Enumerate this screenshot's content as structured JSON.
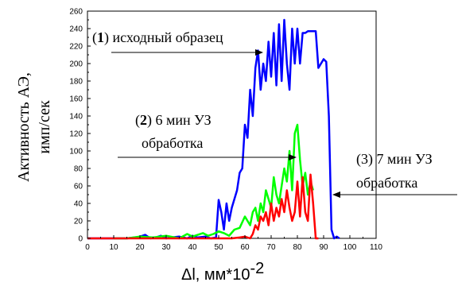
{
  "chart_data": {
    "type": "line",
    "ylabel_line1": "Активность АЭ,",
    "ylabel_line2": "имп/сек",
    "xlabel_main": "Δl, мм*10",
    "xlabel_exp": "-2",
    "xlim": [
      0,
      110
    ],
    "ylim": [
      0,
      260
    ],
    "xticks": [
      0,
      10,
      20,
      30,
      40,
      50,
      60,
      70,
      80,
      90,
      100,
      110
    ],
    "yticks": [
      0,
      20,
      40,
      60,
      80,
      100,
      120,
      140,
      160,
      180,
      200,
      220,
      240,
      260
    ],
    "annotations": [
      {
        "num": "1",
        "text": ") исходный образец"
      },
      {
        "num": "2",
        "text": ") 6 мин УЗ"
      },
      {
        "text": "обработка"
      },
      {
        "text": "(3) 7 мин УЗ"
      },
      {
        "text": "обработка"
      }
    ],
    "series": [
      {
        "color": "#0000ff",
        "x": [
          0,
          5,
          10,
          15,
          18,
          20,
          22,
          24,
          26,
          28,
          30,
          32,
          35,
          38,
          40,
          42,
          45,
          47,
          49,
          50,
          51,
          52,
          53,
          54,
          55,
          56,
          57,
          58,
          59,
          60,
          61,
          62,
          63,
          64,
          65,
          66,
          67,
          68,
          69,
          70,
          71,
          72,
          73,
          74,
          75,
          76,
          77,
          78,
          79,
          80,
          81,
          82,
          83,
          84,
          85,
          86,
          87,
          88,
          89,
          90,
          91,
          92,
          93,
          94,
          95,
          96
        ],
        "values": [
          0,
          0,
          0,
          0,
          1,
          2,
          4,
          0,
          1,
          3,
          0,
          1,
          2,
          0,
          3,
          1,
          2,
          0,
          1,
          44,
          30,
          10,
          40,
          20,
          35,
          45,
          55,
          75,
          80,
          130,
          115,
          170,
          140,
          195,
          215,
          170,
          200,
          180,
          225,
          185,
          235,
          175,
          245,
          180,
          250,
          200,
          170,
          240,
          200,
          240,
          200,
          235,
          235,
          237,
          237,
          237,
          237,
          195,
          200,
          205,
          202,
          140,
          10,
          0,
          2,
          0
        ]
      },
      {
        "color": "#00ff00",
        "x": [
          10,
          15,
          20,
          25,
          30,
          35,
          38,
          40,
          42,
          44,
          46,
          48,
          50,
          52,
          54,
          56,
          58,
          60,
          62,
          63,
          64,
          65,
          66,
          67,
          68,
          69,
          70,
          71,
          72,
          73,
          74,
          75,
          76,
          77,
          78,
          79,
          80,
          81,
          82,
          83,
          84,
          85,
          86
        ],
        "values": [
          0,
          0,
          2,
          1,
          3,
          0,
          5,
          2,
          4,
          6,
          3,
          5,
          8,
          6,
          3,
          10,
          12,
          25,
          15,
          30,
          35,
          20,
          40,
          30,
          55,
          45,
          35,
          70,
          50,
          40,
          60,
          80,
          65,
          100,
          55,
          120,
          130,
          90,
          60,
          75,
          50,
          65,
          55
        ]
      },
      {
        "color": "#ff0000",
        "x": [
          0,
          5,
          10,
          20,
          30,
          40,
          45,
          50,
          55,
          58,
          60,
          62,
          63,
          64,
          65,
          66,
          67,
          68,
          69,
          70,
          71,
          72,
          73,
          74,
          75,
          76,
          77,
          78,
          79,
          80,
          81,
          82,
          83,
          84,
          85,
          86,
          87,
          88
        ],
        "values": [
          0,
          0,
          0,
          0,
          0,
          0,
          0,
          0,
          0,
          1,
          2,
          0,
          5,
          15,
          10,
          25,
          20,
          30,
          15,
          40,
          20,
          35,
          25,
          45,
          30,
          55,
          35,
          20,
          30,
          65,
          25,
          70,
          30,
          20,
          73,
          40,
          0,
          0
        ]
      }
    ]
  }
}
